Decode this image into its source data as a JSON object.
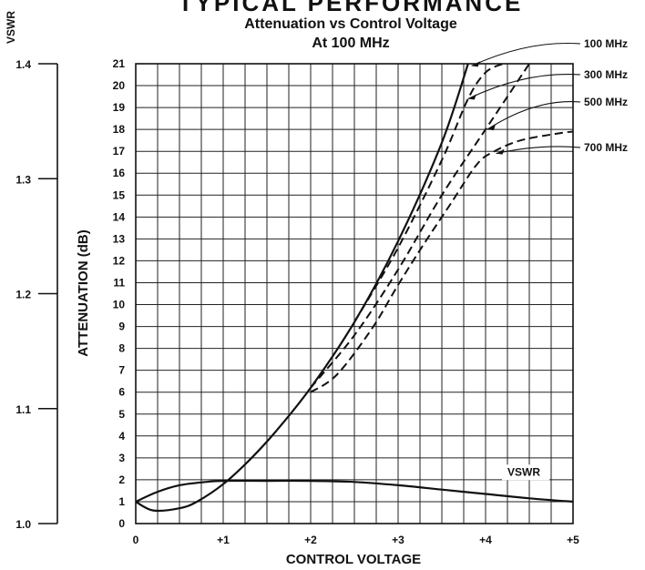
{
  "chart_data": {
    "type": "line",
    "title_partial": "TYPICAL PERFORMANCE",
    "title": "Attenuation vs Control Voltage",
    "subtitle": "At 100 MHz",
    "xlabel": "CONTROL VOLTAGE",
    "ylabel": "ATTENUATION (dB)",
    "y2label": "VSWR",
    "xlim": [
      0,
      5
    ],
    "ylim": [
      0,
      21
    ],
    "y2lim": [
      1.0,
      1.4
    ],
    "x_ticks": [
      "0",
      "+1",
      "+2",
      "+3",
      "+4",
      "+5"
    ],
    "y_ticks": [
      "0",
      "1",
      "2",
      "3",
      "4",
      "5",
      "6",
      "7",
      "8",
      "9",
      "10",
      "11",
      "12",
      "13",
      "14",
      "15",
      "16",
      "17",
      "18",
      "19",
      "20",
      "21"
    ],
    "y2_ticks": [
      "1.0",
      "1.1",
      "1.2",
      "1.3",
      "1.4"
    ],
    "grid": true,
    "series": [
      {
        "name": "100 MHz",
        "style": "solid",
        "x": [
          0,
          0.2,
          0.5,
          0.7,
          1.0,
          1.3,
          1.6,
          2.0,
          2.5,
          3.0,
          3.5,
          3.8
        ],
        "y": [
          1.0,
          0.6,
          0.7,
          1.0,
          1.8,
          2.9,
          4.2,
          6.2,
          9.2,
          12.9,
          17.4,
          21.0
        ]
      },
      {
        "name": "300 MHz",
        "style": "dashed",
        "x": [
          2.5,
          3.0,
          3.5,
          3.8,
          4.0,
          4.2
        ],
        "y": [
          9.2,
          12.6,
          16.6,
          19.4,
          20.6,
          21.0
        ]
      },
      {
        "name": "500 MHz",
        "style": "dashed",
        "x": [
          2.0,
          2.5,
          3.0,
          3.5,
          4.0,
          4.3,
          4.5
        ],
        "y": [
          6.2,
          8.6,
          11.6,
          15.0,
          18.0,
          19.8,
          21.0
        ]
      },
      {
        "name": "700 MHz",
        "style": "dashed",
        "x": [
          2.0,
          2.3,
          2.7,
          3.0,
          3.3,
          3.6,
          3.9,
          4.1,
          4.4,
          4.8,
          5.0
        ],
        "y": [
          6.0,
          6.8,
          8.9,
          10.9,
          12.8,
          14.6,
          16.4,
          17.0,
          17.5,
          17.8,
          17.9
        ]
      },
      {
        "name": "VSWR",
        "style": "solid",
        "x": [
          0,
          0.25,
          0.5,
          0.8,
          1.0,
          1.5,
          2.0,
          2.5,
          3.0,
          3.5,
          4.0,
          4.5,
          5.0
        ],
        "y": [
          1.0,
          1.45,
          1.75,
          1.9,
          1.95,
          1.95,
          1.95,
          1.9,
          1.75,
          1.55,
          1.35,
          1.15,
          1.0
        ]
      }
    ]
  }
}
